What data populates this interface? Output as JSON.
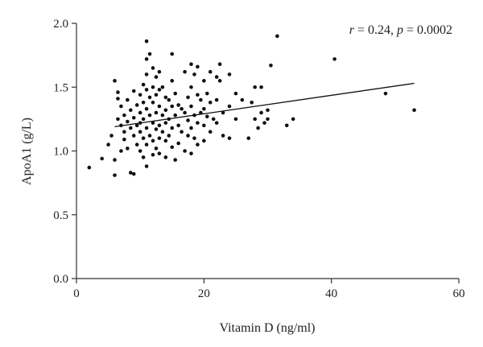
{
  "chart_data": {
    "type": "scatter",
    "title": "",
    "xlabel": "Vitamin D (ng/ml)",
    "ylabel": "ApoA1 (g/L)",
    "xlim": [
      0,
      60
    ],
    "ylim": [
      0.0,
      2.0
    ],
    "xticks": [
      "0",
      "20",
      "40",
      "60"
    ],
    "yticks": [
      "0.0",
      "0.5",
      "1.0",
      "1.5",
      "2.0"
    ],
    "grid": false,
    "annotation": {
      "r_symbol": "r",
      "r_text": " = 0.24, ",
      "p_symbol": "p",
      "p_text": " = 0.0002"
    },
    "trendline": {
      "x": [
        6,
        53
      ],
      "y": [
        1.19,
        1.53
      ]
    },
    "points": [
      [
        2,
        0.87
      ],
      [
        4,
        0.94
      ],
      [
        5,
        1.05
      ],
      [
        5.5,
        1.12
      ],
      [
        6,
        0.81
      ],
      [
        6,
        0.93
      ],
      [
        6,
        1.55
      ],
      [
        6.5,
        1.46
      ],
      [
        6.5,
        1.41
      ],
      [
        6.5,
        1.25
      ],
      [
        7,
        1.35
      ],
      [
        7,
        1.2
      ],
      [
        7,
        1.0
      ],
      [
        7.5,
        1.28
      ],
      [
        7.5,
        1.15
      ],
      [
        7.5,
        1.09
      ],
      [
        8,
        1.02
      ],
      [
        8,
        1.4
      ],
      [
        8,
        1.23
      ],
      [
        8.5,
        1.32
      ],
      [
        8.5,
        1.18
      ],
      [
        8.5,
        0.83
      ],
      [
        9,
        0.82
      ],
      [
        9,
        1.47
      ],
      [
        9,
        1.26
      ],
      [
        9,
        1.12
      ],
      [
        9.5,
        1.05
      ],
      [
        9.5,
        1.36
      ],
      [
        9.5,
        1.2
      ],
      [
        10,
        1.44
      ],
      [
        10,
        1.3
      ],
      [
        10,
        1.15
      ],
      [
        10,
        1.0
      ],
      [
        10,
        1.22
      ],
      [
        10.5,
        1.52
      ],
      [
        10.5,
        1.38
      ],
      [
        10.5,
        1.25
      ],
      [
        10.5,
        1.1
      ],
      [
        10.5,
        0.95
      ],
      [
        11,
        1.86
      ],
      [
        11,
        1.72
      ],
      [
        11,
        1.6
      ],
      [
        11,
        1.48
      ],
      [
        11,
        1.33
      ],
      [
        11,
        1.18
      ],
      [
        11,
        1.05
      ],
      [
        11,
        0.88
      ],
      [
        11.5,
        1.76
      ],
      [
        11.5,
        1.42
      ],
      [
        11.5,
        1.28
      ],
      [
        11.5,
        1.12
      ],
      [
        12,
        1.65
      ],
      [
        12,
        1.5
      ],
      [
        12,
        1.38
      ],
      [
        12,
        1.22
      ],
      [
        12,
        1.08
      ],
      [
        12,
        0.97
      ],
      [
        12.5,
        1.58
      ],
      [
        12.5,
        1.44
      ],
      [
        12.5,
        1.3
      ],
      [
        12.5,
        1.17
      ],
      [
        12.5,
        1.02
      ],
      [
        13,
        1.62
      ],
      [
        13,
        1.48
      ],
      [
        13,
        1.35
      ],
      [
        13,
        1.2
      ],
      [
        13,
        1.1
      ],
      [
        13,
        0.98
      ],
      [
        13.5,
        1.5
      ],
      [
        13.5,
        1.28
      ],
      [
        13.5,
        1.15
      ],
      [
        14,
        1.42
      ],
      [
        14,
        1.32
      ],
      [
        14,
        1.22
      ],
      [
        14,
        1.08
      ],
      [
        14,
        0.95
      ],
      [
        14.5,
        1.4
      ],
      [
        14.5,
        1.25
      ],
      [
        14.5,
        1.12
      ],
      [
        15,
        1.76
      ],
      [
        15,
        1.55
      ],
      [
        15,
        1.35
      ],
      [
        15,
        1.18
      ],
      [
        15,
        1.03
      ],
      [
        15.5,
        1.45
      ],
      [
        15.5,
        1.28
      ],
      [
        15.5,
        0.93
      ],
      [
        16,
        1.36
      ],
      [
        16,
        1.2
      ],
      [
        16,
        1.06
      ],
      [
        16.5,
        1.33
      ],
      [
        16.5,
        1.15
      ],
      [
        17,
        1.62
      ],
      [
        17,
        1.3
      ],
      [
        17,
        1.0
      ],
      [
        17.5,
        1.42
      ],
      [
        17.5,
        1.24
      ],
      [
        17.5,
        1.12
      ],
      [
        18,
        1.68
      ],
      [
        18,
        1.5
      ],
      [
        18,
        1.35
      ],
      [
        18,
        1.18
      ],
      [
        18,
        0.98
      ],
      [
        18.5,
        1.6
      ],
      [
        18.5,
        1.28
      ],
      [
        18.5,
        1.1
      ],
      [
        19,
        1.66
      ],
      [
        19,
        1.44
      ],
      [
        19,
        1.22
      ],
      [
        19,
        1.05
      ],
      [
        19.5,
        1.4
      ],
      [
        19.5,
        1.3
      ],
      [
        20,
        1.55
      ],
      [
        20,
        1.33
      ],
      [
        20,
        1.2
      ],
      [
        20,
        1.08
      ],
      [
        20.5,
        1.45
      ],
      [
        20.5,
        1.27
      ],
      [
        21,
        1.62
      ],
      [
        21,
        1.38
      ],
      [
        21,
        1.15
      ],
      [
        21.5,
        1.25
      ],
      [
        22,
        1.58
      ],
      [
        22,
        1.4
      ],
      [
        22,
        1.22
      ],
      [
        22.5,
        1.68
      ],
      [
        22.5,
        1.55
      ],
      [
        23,
        1.3
      ],
      [
        23,
        1.12
      ],
      [
        24,
        1.6
      ],
      [
        24,
        1.35
      ],
      [
        24,
        1.1
      ],
      [
        25,
        1.45
      ],
      [
        25,
        1.25
      ],
      [
        26,
        1.4
      ],
      [
        27,
        1.1
      ],
      [
        27.5,
        1.38
      ],
      [
        28,
        1.5
      ],
      [
        28,
        1.25
      ],
      [
        28.5,
        1.18
      ],
      [
        29,
        1.5
      ],
      [
        29,
        1.3
      ],
      [
        29.5,
        1.22
      ],
      [
        30,
        1.32
      ],
      [
        30,
        1.25
      ],
      [
        30.5,
        1.67
      ],
      [
        31.5,
        1.9
      ],
      [
        33,
        1.2
      ],
      [
        34,
        1.25
      ],
      [
        40.5,
        1.72
      ],
      [
        48.5,
        1.45
      ],
      [
        53,
        1.32
      ]
    ]
  }
}
